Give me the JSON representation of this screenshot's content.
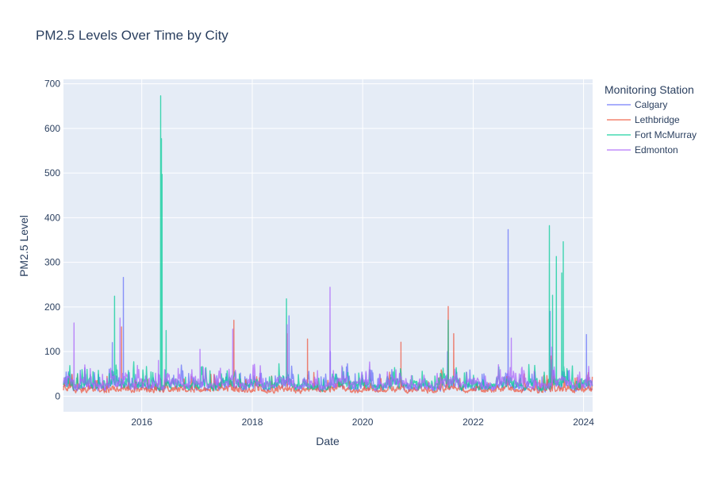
{
  "chart_data": {
    "type": "line",
    "title": "PM2.5 Levels Over Time by City",
    "xlabel": "Date",
    "ylabel": "PM2.5 Level",
    "x_range": [
      "2014-08-01",
      "2024-03-01"
    ],
    "ylim": [
      -35,
      710
    ],
    "x_ticks": [
      "2016",
      "2018",
      "2020",
      "2022",
      "2024"
    ],
    "y_ticks": [
      0,
      100,
      200,
      300,
      400,
      500,
      600,
      700
    ],
    "grid": true,
    "legend": {
      "title": "Monitoring Station",
      "placement": "right"
    },
    "series": [
      {
        "name": "Calgary",
        "color": "#636efa",
        "peaks": [
          {
            "date": "2015-09-01",
            "value": 266
          },
          {
            "date": "2015-06-20",
            "value": 120
          },
          {
            "date": "2016-04-20",
            "value": 50
          },
          {
            "date": "2018-09-01",
            "value": 180
          },
          {
            "date": "2019-06-01",
            "value": 100
          },
          {
            "date": "2021-07-15",
            "value": 100
          },
          {
            "date": "2022-08-20",
            "value": 373
          },
          {
            "date": "2023-05-25",
            "value": 190
          },
          {
            "date": "2024-01-20",
            "value": 138
          }
        ]
      },
      {
        "name": "Lethbridge",
        "color": "#ef553b",
        "peaks": [
          {
            "date": "2015-08-20",
            "value": 155
          },
          {
            "date": "2017-09-01",
            "value": 170
          },
          {
            "date": "2018-08-20",
            "value": 140
          },
          {
            "date": "2019-01-01",
            "value": 128
          },
          {
            "date": "2020-09-10",
            "value": 121
          },
          {
            "date": "2021-07-20",
            "value": 201
          },
          {
            "date": "2021-08-25",
            "value": 140
          },
          {
            "date": "2023-06-01",
            "value": 90
          }
        ]
      },
      {
        "name": "Fort McMurray",
        "color": "#00cc96",
        "peaks": [
          {
            "date": "2015-07-05",
            "value": 224
          },
          {
            "date": "2016-05-05",
            "value": 673
          },
          {
            "date": "2016-05-10",
            "value": 577
          },
          {
            "date": "2016-05-14",
            "value": 497
          },
          {
            "date": "2016-06-10",
            "value": 147
          },
          {
            "date": "2018-08-15",
            "value": 218
          },
          {
            "date": "2021-07-20",
            "value": 170
          },
          {
            "date": "2023-05-20",
            "value": 382
          },
          {
            "date": "2023-06-10",
            "value": 226
          },
          {
            "date": "2023-07-05",
            "value": 313
          },
          {
            "date": "2023-08-20",
            "value": 346
          },
          {
            "date": "2023-08-10",
            "value": 276
          }
        ]
      },
      {
        "name": "Edmonton",
        "color": "#ab63fa",
        "peaks": [
          {
            "date": "2014-10-10",
            "value": 164
          },
          {
            "date": "2015-08-10",
            "value": 175
          },
          {
            "date": "2016-04-20",
            "value": 80
          },
          {
            "date": "2017-01-20",
            "value": 105
          },
          {
            "date": "2017-08-25",
            "value": 150
          },
          {
            "date": "2018-08-20",
            "value": 160
          },
          {
            "date": "2019-05-30",
            "value": 244
          },
          {
            "date": "2022-09-10",
            "value": 130
          },
          {
            "date": "2023-06-05",
            "value": 110
          }
        ]
      }
    ]
  }
}
